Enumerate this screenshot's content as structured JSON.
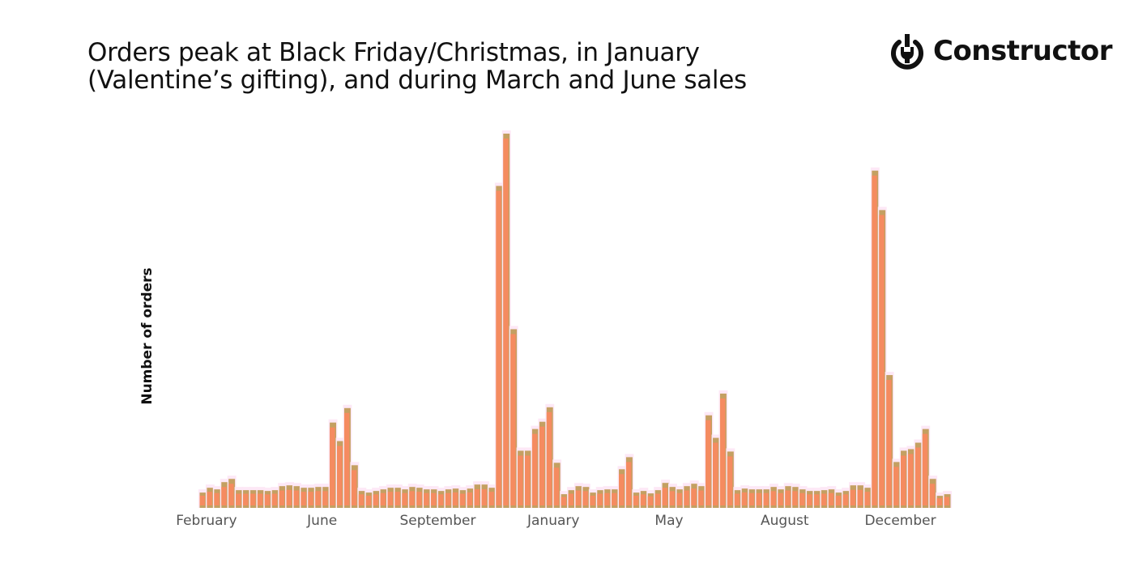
{
  "title_lines": [
    "Orders peak at Black Friday/Christmas, in January",
    "(Valentine’s gifting), and during March and June sales"
  ],
  "logo": {
    "text": "Constructor",
    "icon": "power-wrench-icon"
  },
  "chart_data": {
    "type": "bar",
    "title": "Orders peak at Black Friday/Christmas, in January (Valentine’s gifting), and during March and June sales",
    "xlabel": "",
    "ylabel": "Number of orders",
    "y_ticks_shown": false,
    "grid": false,
    "colors": {
      "bar_fill": "#f58b60",
      "bar_edge": "#c4a062"
    },
    "x_ticks": [
      {
        "label": "February",
        "index": 1
      },
      {
        "label": "June",
        "index": 17
      },
      {
        "label": "September",
        "index": 33
      },
      {
        "label": "January",
        "index": 49
      },
      {
        "label": "May",
        "index": 65
      },
      {
        "label": "August",
        "index": 81
      },
      {
        "label": "December",
        "index": 97
      }
    ],
    "values": [
      19,
      25,
      23,
      32,
      36,
      22,
      22,
      22,
      22,
      21,
      22,
      27,
      28,
      27,
      25,
      25,
      26,
      26,
      106,
      83,
      124,
      53,
      21,
      19,
      21,
      23,
      25,
      25,
      23,
      26,
      25,
      23,
      23,
      21,
      23,
      24,
      22,
      24,
      29,
      29,
      25,
      400,
      465,
      222,
      71,
      71,
      98,
      107,
      125,
      56,
      17,
      22,
      27,
      26,
      19,
      22,
      23,
      23,
      48,
      63,
      19,
      21,
      18,
      22,
      31,
      26,
      23,
      27,
      30,
      27,
      115,
      87,
      142,
      70,
      22,
      24,
      23,
      23,
      23,
      26,
      23,
      27,
      26,
      23,
      21,
      21,
      22,
      23,
      19,
      21,
      28,
      28,
      25,
      419,
      370,
      165,
      57,
      71,
      73,
      81,
      98,
      36,
      15,
      17
    ],
    "ylim": [
      0,
      470
    ]
  }
}
